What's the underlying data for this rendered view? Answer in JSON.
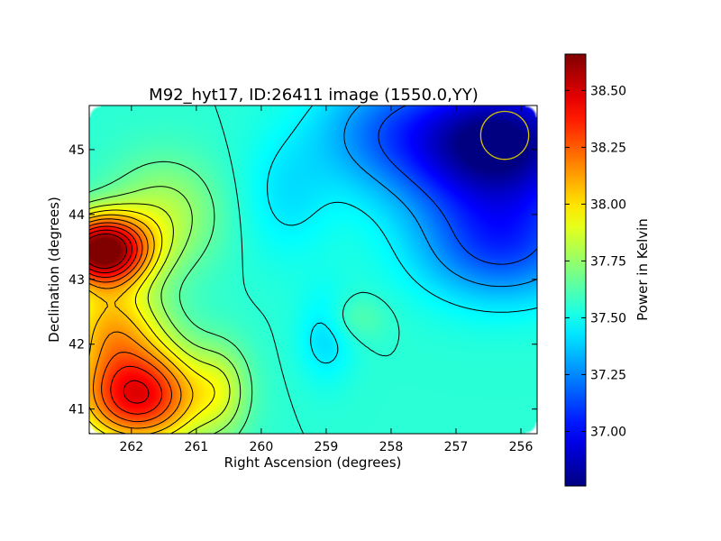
{
  "chart_data": {
    "type": "heatmap",
    "title": "M92_hyt17, ID:26411 image (1550.0,YY)",
    "xlabel": "Right Ascension (degrees)",
    "ylabel": "Declination (degrees)",
    "colorbar_label": "Power in Kelvin",
    "colormap": "jet",
    "xlim": [
      262.65,
      255.75
    ],
    "ylim": [
      40.62,
      45.68
    ],
    "x_ticks": [
      262,
      261,
      260,
      259,
      258,
      257,
      256
    ],
    "x_tick_labels": [
      "262",
      "261",
      "260",
      "259",
      "258",
      "257",
      "256"
    ],
    "y_ticks": [
      41,
      42,
      43,
      44,
      45
    ],
    "y_tick_labels": [
      "41",
      "42",
      "43",
      "44",
      "45"
    ],
    "value_range": [
      36.76,
      38.66
    ],
    "colorbar_ticks": [
      37.0,
      37.25,
      37.5,
      37.75,
      38.0,
      38.25,
      38.5
    ],
    "colorbar_tick_labels": [
      "37.00",
      "37.25",
      "37.50",
      "37.75",
      "38.00",
      "38.25",
      "38.50"
    ],
    "contour_levels": [
      37.15,
      37.3,
      37.45,
      37.55,
      37.65,
      37.75,
      37.85,
      37.95,
      38.05,
      38.15,
      38.25,
      38.35,
      38.45,
      38.55
    ],
    "field_components": {
      "base": 37.55,
      "features": [
        {
          "ra": 262.45,
          "dec": 43.45,
          "amplitude": 1.15,
          "sigma_ra": 0.5,
          "sigma_dec": 0.38
        },
        {
          "ra": 261.9,
          "dec": 41.2,
          "amplitude": 0.9,
          "sigma_ra": 0.7,
          "sigma_dec": 0.55
        },
        {
          "ra": 262.3,
          "dec": 42.3,
          "amplitude": 0.45,
          "sigma_ra": 0.55,
          "sigma_dec": 0.5
        },
        {
          "ra": 261.5,
          "dec": 44.0,
          "amplitude": 0.25,
          "sigma_ra": 0.6,
          "sigma_dec": 0.6
        },
        {
          "ra": 260.6,
          "dec": 41.3,
          "amplitude": 0.2,
          "sigma_ra": 0.3,
          "sigma_dec": 0.5
        },
        {
          "ra": 256.4,
          "dec": 45.1,
          "amplitude": -0.85,
          "sigma_ra": 1.1,
          "sigma_dec": 0.75
        },
        {
          "ra": 256.3,
          "dec": 43.5,
          "amplitude": -0.4,
          "sigma_ra": 0.9,
          "sigma_dec": 0.6
        },
        {
          "ra": 258.3,
          "dec": 45.3,
          "amplitude": -0.18,
          "sigma_ra": 0.7,
          "sigma_dec": 0.6
        },
        {
          "ra": 259.0,
          "dec": 42.15,
          "amplitude": -0.15,
          "sigma_ra": 0.3,
          "sigma_dec": 0.5
        },
        {
          "ra": 259.6,
          "dec": 44.3,
          "amplitude": -0.12,
          "sigma_ra": 0.5,
          "sigma_dec": 0.7
        },
        {
          "ra": 258.6,
          "dec": 42.4,
          "amplitude": 0.1,
          "sigma_ra": 0.35,
          "sigma_dec": 0.25
        }
      ]
    },
    "beam_marker": {
      "ra": 256.25,
      "dec": 45.22,
      "radius_deg": 0.37,
      "color": "#d4c400"
    }
  }
}
